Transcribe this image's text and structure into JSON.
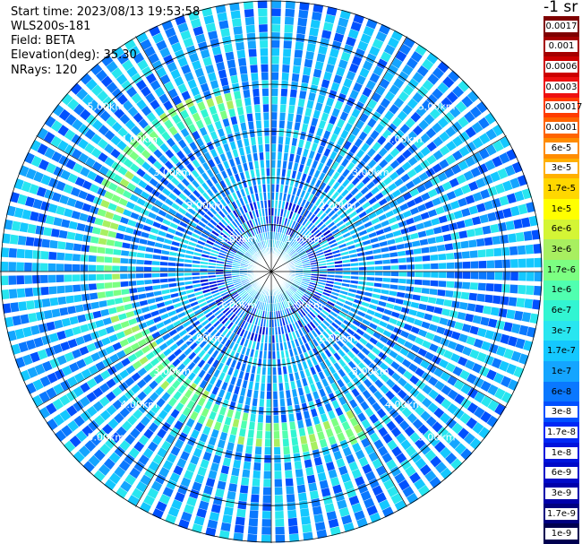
{
  "info": {
    "start_time": "Start time: 2023/08/13 19:53:58",
    "device": "WLS200s-181",
    "field": "Field: BETA",
    "elevation": "Elevation(deg): 35.30",
    "nrays": "NRays: 120"
  },
  "colorbar": {
    "unit": "-1 sr",
    "labels": [
      "0.0017",
      "0.001",
      "0.0006",
      "0.0003",
      "0.00017",
      "0.0001",
      "6e-5",
      "3e-5",
      "1.7e-5",
      "1e-5",
      "6e-6",
      "3e-6",
      "1.7e-6",
      "1e-6",
      "6e-7",
      "3e-7",
      "1.7e-7",
      "1e-7",
      "6e-8",
      "3e-8",
      "1.7e-8",
      "1e-8",
      "6e-9",
      "3e-9",
      "1.7e-9",
      "1e-9"
    ],
    "colors": [
      "#7f0000",
      "#a50000",
      "#cc0000",
      "#ee1010",
      "#ff3c00",
      "#ff6400",
      "#ff8c00",
      "#ffb000",
      "#ffd700",
      "#ffff00",
      "#d4f535",
      "#a8ef60",
      "#7cff82",
      "#50ffb0",
      "#32f5d2",
      "#28e6f0",
      "#14c8ff",
      "#14a5ff",
      "#0a78ff",
      "#0050ff",
      "#0028f5",
      "#0014dc",
      "#000ac8",
      "#0000aa",
      "#000080",
      "#000050"
    ]
  },
  "chart_data": {
    "type": "heatmap",
    "projection": "polar (PPI scan)",
    "field": "BETA",
    "elevation_deg": 35.3,
    "n_rays": 120,
    "range_unit": "km",
    "range_rings_km": [
      1.0,
      2.0,
      3.0,
      4.0,
      5.0
    ],
    "range_ring_labels": [
      "1.00km",
      "2.00km",
      "3.00km",
      "4.00km",
      "5.00km"
    ],
    "max_range_km": 5.8,
    "color_scale": "log",
    "value_range": [
      1e-09,
      0.0017
    ],
    "background_level": 1e-07,
    "features": [
      {
        "description": "arc of elevated backscatter",
        "range_km": 3.5,
        "azimuth_from_deg": 150,
        "azimuth_to_deg": 350,
        "level": 1e-06
      },
      {
        "description": "low backscatter near center",
        "range_km": 1.5,
        "level": 1e-08
      }
    ]
  }
}
